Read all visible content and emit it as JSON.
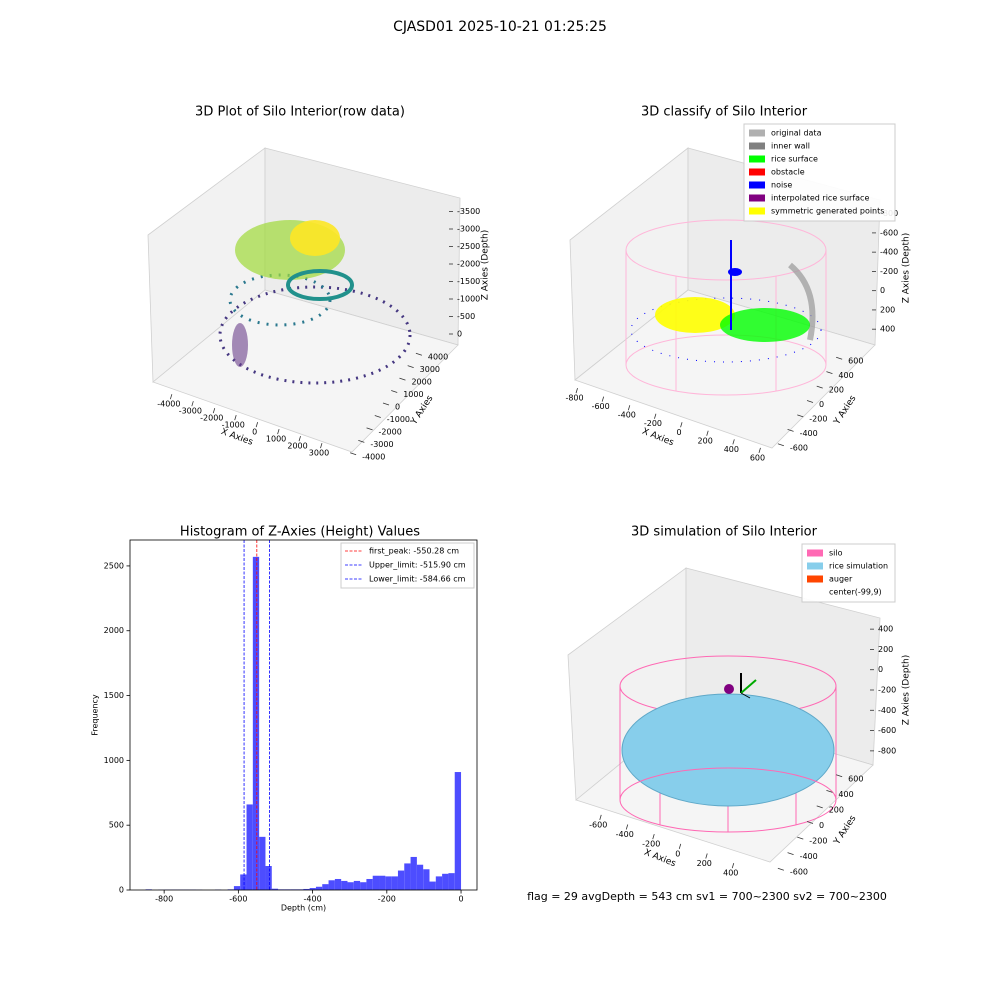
{
  "title": "CJASD01 2025-10-21 01:25:25",
  "footer": "flag = 29  avgDepth = 543 cm  sv1 = 700~2300  sv2 = 700~2300",
  "chart_data": [
    {
      "type": "scatter3d",
      "title": "3D Plot of Silo Interior(row data)",
      "xlabel": "X Axies",
      "ylabel": "Y Axies",
      "zlabel": "Z Axies (Depth)",
      "xlim": [
        -4600,
        3700
      ],
      "ylim": [
        -4500,
        4500
      ],
      "zlim": [
        -3800,
        200
      ],
      "xticks": [
        -4000,
        -3000,
        -2000,
        -1000,
        0,
        1000,
        2000,
        3000
      ],
      "yticks": [
        -4000,
        -3000,
        -2000,
        -1000,
        0,
        1000,
        2000,
        3000,
        4000
      ],
      "zticks": [
        0,
        -500,
        -1000,
        -1500,
        -2000,
        -2500,
        -3000,
        -3500
      ]
    },
    {
      "type": "scatter3d",
      "title": "3D classify of Silo Interior",
      "xlabel": "X Axies",
      "ylabel": "Y Axies",
      "zlabel": "Z Axies (Depth)",
      "xlim": [
        -850,
        650
      ],
      "ylim": [
        -700,
        700
      ],
      "zlim": [
        -900,
        450
      ],
      "xticks": [
        -800,
        -600,
        -400,
        -200,
        0,
        200,
        400,
        600
      ],
      "yticks": [
        -600,
        -400,
        -200,
        0,
        200,
        400,
        600
      ],
      "zticks": [
        400,
        200,
        0,
        -200,
        -400,
        -600,
        -800
      ],
      "legend": [
        {
          "name": "original data",
          "color": "#b0b0b0"
        },
        {
          "name": "inner wall",
          "color": "#808080"
        },
        {
          "name": "rice surface",
          "color": "#00ff00"
        },
        {
          "name": "obstacle",
          "color": "#ff0000"
        },
        {
          "name": "noise",
          "color": "#0000ff"
        },
        {
          "name": "interpolated rice surface",
          "color": "#800080"
        },
        {
          "name": "symmetric generated points",
          "color": "#ffff00"
        }
      ]
    },
    {
      "type": "histogram",
      "title": "Histogram of Z-Axies (Height) Values",
      "xlabel": "Depth (cm)",
      "ylabel": "Frequency",
      "color": "#4d4dff",
      "bins": [
        -850,
        -833,
        -816,
        -799,
        -782,
        -765,
        -748,
        -731,
        -714,
        -697,
        -680,
        -663,
        -646,
        -629,
        -612,
        -595,
        -578,
        -561,
        -544,
        -527,
        -510,
        -493,
        -476,
        -459,
        -442,
        -425,
        -408,
        -391,
        -374,
        -357,
        -340,
        -323,
        -306,
        -289,
        -272,
        -255,
        -238,
        -221,
        -204,
        -187,
        -170,
        -153,
        -136,
        -119,
        -102,
        -85,
        -68,
        -51,
        -34,
        -17,
        0
      ],
      "counts": [
        5,
        0,
        2,
        3,
        3,
        3,
        3,
        3,
        2,
        0,
        0,
        3,
        0,
        5,
        30,
        120,
        660,
        2570,
        410,
        185,
        10,
        5,
        5,
        5,
        5,
        8,
        15,
        25,
        45,
        75,
        85,
        70,
        60,
        70,
        60,
        85,
        110,
        110,
        105,
        105,
        150,
        205,
        255,
        195,
        160,
        65,
        105,
        125,
        130,
        910
      ],
      "xlim": [
        -892,
        43
      ],
      "ylim": [
        0,
        2700
      ],
      "xticks": [
        -800,
        -600,
        -400,
        -200,
        0
      ],
      "yticks": [
        0,
        500,
        1000,
        1500,
        2000,
        2500
      ],
      "vlines": [
        {
          "label": "first_peak: -550.28 cm",
          "value": -550.28,
          "color": "#ff0000"
        },
        {
          "label": "Upper_limit: -515.90 cm",
          "value": -515.9,
          "color": "#0000ff"
        },
        {
          "label": "Lower_limit: -584.66 cm",
          "value": -584.66,
          "color": "#0000ff"
        }
      ],
      "legend_position": "upper right"
    },
    {
      "type": "surface3d",
      "title": "3D simulation of Silo Interior",
      "xlabel": "X Axies",
      "ylabel": "Y Axies",
      "zlabel": "Z Axies (Depth)",
      "xlim": [
        -700,
        500
      ],
      "ylim": [
        -700,
        700
      ],
      "zlim": [
        -900,
        500
      ],
      "xticks": [
        -600,
        -400,
        -200,
        0,
        200,
        400
      ],
      "yticks": [
        -600,
        -400,
        -200,
        0,
        200,
        400,
        600
      ],
      "zticks": [
        400,
        200,
        0,
        -200,
        -400,
        -600,
        -800
      ],
      "legend": [
        {
          "name": "silo",
          "color": "#ff69b4"
        },
        {
          "name": "rice simulation",
          "color": "#87ceeb"
        },
        {
          "name": "auger",
          "color": "#ff4500"
        },
        {
          "name": "center(-99,9)",
          "color": "#ffffff"
        }
      ]
    }
  ]
}
